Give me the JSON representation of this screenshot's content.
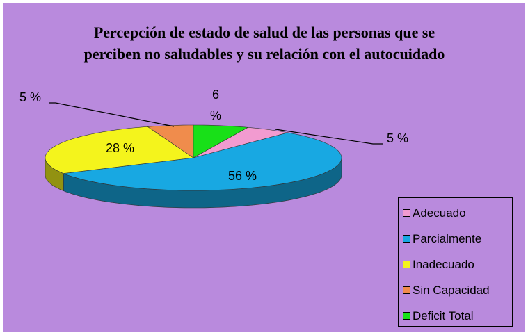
{
  "chart_data": {
    "type": "pie",
    "title": "Percepción de estado de salud de las personas que se perciben no saludables y su relación con el autocuidado",
    "categories": [
      "Adecuado",
      "Parcialmente",
      "Inadecuado",
      "Sin Capacidad",
      "Deficit Total"
    ],
    "values": [
      5,
      56,
      28,
      5,
      6
    ],
    "value_labels": [
      "5 %",
      "56 %",
      "28 %",
      "5 %",
      "6 %"
    ],
    "colors": [
      "#f29bd0",
      "#18a8e2",
      "#f4f41c",
      "#f08c4c",
      "#18e018"
    ],
    "legend": "right"
  }
}
